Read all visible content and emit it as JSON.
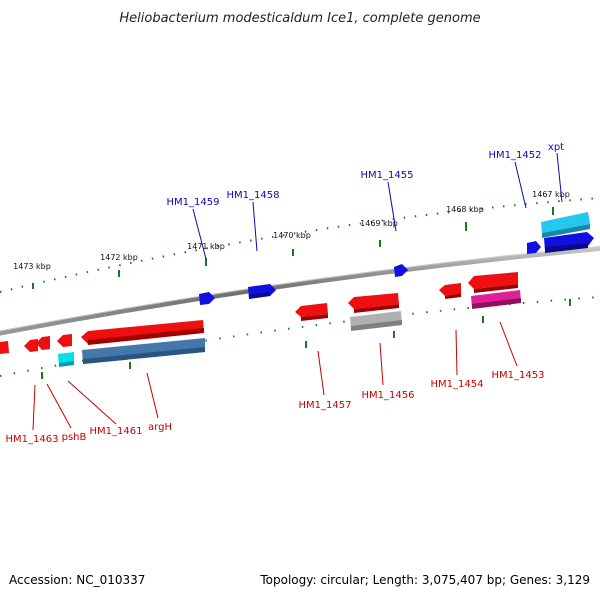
{
  "title": "Heliobacterium modesticaldum Ice1, complete genome",
  "footer": {
    "accession": "Accession: NC_010337",
    "summary": "Topology: circular; Length: 3,075,407 bp; Genes: 3,129"
  },
  "colors": {
    "backbone": "#8a8a8a",
    "tick": "#1a7a1a",
    "label_forward": "#0a0ab4",
    "label_reverse": "#c80000",
    "gene_blue": "#1010e0",
    "gene_cyan": "#22c8ee",
    "gene_red": "#ee1010",
    "gene_steel": "#4477aa",
    "gene_grey": "#b0b0b0",
    "gene_magenta": "#e0209a",
    "gene_aqua": "#00e0e8"
  },
  "kbp_labels": [
    "1467 kbp",
    "1468 kbp",
    "1469 kbp",
    "1470 kbp",
    "1471 kbp",
    "1472 kbp",
    "1473 kbp"
  ],
  "gene_labels": {
    "forward": [
      "xpt",
      "HM1_1452",
      "HM1_1455",
      "HM1_1458",
      "HM1_1459"
    ],
    "reverse": [
      "HM1_1453",
      "HM1_1454",
      "HM1_1456",
      "HM1_1457",
      "argH",
      "HM1_1461",
      "pshB",
      "HM1_1463"
    ]
  }
}
